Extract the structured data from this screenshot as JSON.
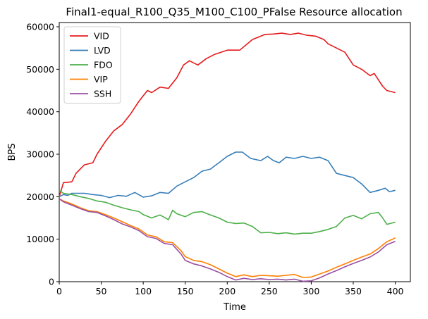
{
  "chart_data": {
    "type": "line",
    "title": "Final1-equal_R100_Q35_M100_C100_PFalse Resource allocation",
    "xlabel": "Time",
    "ylabel": "BPS",
    "xlim": [
      0,
      418
    ],
    "ylim": [
      0,
      61000
    ],
    "xticks": [
      0,
      50,
      100,
      150,
      200,
      250,
      300,
      350,
      400
    ],
    "yticks": [
      0,
      10000,
      20000,
      30000,
      40000,
      50000,
      60000
    ],
    "grid": false,
    "legend_position": "top-left",
    "series": [
      {
        "name": "VID",
        "color": "#e41a1c",
        "points": [
          [
            0,
            20000
          ],
          [
            5,
            23300
          ],
          [
            15,
            23500
          ],
          [
            20,
            25500
          ],
          [
            30,
            27500
          ],
          [
            40,
            28000
          ],
          [
            45,
            30000
          ],
          [
            55,
            33000
          ],
          [
            65,
            35500
          ],
          [
            75,
            37000
          ],
          [
            85,
            39500
          ],
          [
            95,
            42500
          ],
          [
            105,
            45000
          ],
          [
            110,
            44500
          ],
          [
            120,
            45800
          ],
          [
            130,
            45500
          ],
          [
            140,
            48000
          ],
          [
            148,
            51000
          ],
          [
            155,
            52000
          ],
          [
            165,
            51000
          ],
          [
            175,
            52500
          ],
          [
            185,
            53500
          ],
          [
            200,
            54500
          ],
          [
            215,
            54500
          ],
          [
            230,
            57000
          ],
          [
            245,
            58200
          ],
          [
            255,
            58300
          ],
          [
            265,
            58500
          ],
          [
            275,
            58200
          ],
          [
            285,
            58500
          ],
          [
            295,
            58000
          ],
          [
            305,
            57800
          ],
          [
            315,
            57000
          ],
          [
            320,
            56000
          ],
          [
            330,
            55000
          ],
          [
            340,
            54000
          ],
          [
            350,
            51000
          ],
          [
            360,
            50000
          ],
          [
            370,
            48500
          ],
          [
            375,
            49000
          ],
          [
            385,
            46000
          ],
          [
            390,
            45000
          ],
          [
            400,
            44500
          ]
        ]
      },
      {
        "name": "LVD",
        "color": "#377eb8",
        "points": [
          [
            0,
            20000
          ],
          [
            5,
            20500
          ],
          [
            10,
            20300
          ],
          [
            15,
            20800
          ],
          [
            30,
            20800
          ],
          [
            40,
            20500
          ],
          [
            50,
            20300
          ],
          [
            60,
            19800
          ],
          [
            70,
            20300
          ],
          [
            80,
            20100
          ],
          [
            90,
            21000
          ],
          [
            100,
            19900
          ],
          [
            110,
            20200
          ],
          [
            120,
            21000
          ],
          [
            130,
            20800
          ],
          [
            140,
            22500
          ],
          [
            150,
            23500
          ],
          [
            160,
            24500
          ],
          [
            170,
            26000
          ],
          [
            180,
            26500
          ],
          [
            190,
            28000
          ],
          [
            200,
            29500
          ],
          [
            210,
            30500
          ],
          [
            218,
            30500
          ],
          [
            228,
            29000
          ],
          [
            240,
            28500
          ],
          [
            248,
            29500
          ],
          [
            255,
            28500
          ],
          [
            262,
            28000
          ],
          [
            270,
            29300
          ],
          [
            280,
            29000
          ],
          [
            290,
            29500
          ],
          [
            300,
            29000
          ],
          [
            310,
            29300
          ],
          [
            320,
            28500
          ],
          [
            330,
            25500
          ],
          [
            340,
            25000
          ],
          [
            350,
            24500
          ],
          [
            360,
            23000
          ],
          [
            370,
            21000
          ],
          [
            380,
            21500
          ],
          [
            388,
            22000
          ],
          [
            393,
            21200
          ],
          [
            400,
            21500
          ]
        ]
      },
      {
        "name": "FDO",
        "color": "#4daf4a",
        "points": [
          [
            0,
            21500
          ],
          [
            5,
            20800
          ],
          [
            15,
            20500
          ],
          [
            25,
            20000
          ],
          [
            35,
            19600
          ],
          [
            45,
            19000
          ],
          [
            55,
            18700
          ],
          [
            65,
            18000
          ],
          [
            75,
            17400
          ],
          [
            85,
            16900
          ],
          [
            95,
            16500
          ],
          [
            100,
            15800
          ],
          [
            110,
            15000
          ],
          [
            120,
            15700
          ],
          [
            130,
            14600
          ],
          [
            135,
            16800
          ],
          [
            140,
            16000
          ],
          [
            150,
            15300
          ],
          [
            160,
            16300
          ],
          [
            170,
            16500
          ],
          [
            180,
            15700
          ],
          [
            190,
            15000
          ],
          [
            200,
            14000
          ],
          [
            210,
            13700
          ],
          [
            220,
            13800
          ],
          [
            230,
            13000
          ],
          [
            240,
            11500
          ],
          [
            250,
            11600
          ],
          [
            260,
            11300
          ],
          [
            270,
            11500
          ],
          [
            280,
            11200
          ],
          [
            290,
            11400
          ],
          [
            300,
            11400
          ],
          [
            310,
            11800
          ],
          [
            320,
            12300
          ],
          [
            330,
            13000
          ],
          [
            340,
            15000
          ],
          [
            350,
            15600
          ],
          [
            360,
            14800
          ],
          [
            370,
            16000
          ],
          [
            380,
            16300
          ],
          [
            385,
            15000
          ],
          [
            390,
            13500
          ],
          [
            400,
            14000
          ]
        ]
      },
      {
        "name": "VIP",
        "color": "#ff7f00",
        "points": [
          [
            0,
            19500
          ],
          [
            5,
            19000
          ],
          [
            15,
            18300
          ],
          [
            25,
            17400
          ],
          [
            35,
            16700
          ],
          [
            45,
            16500
          ],
          [
            55,
            15800
          ],
          [
            65,
            15000
          ],
          [
            75,
            14100
          ],
          [
            85,
            13200
          ],
          [
            95,
            12400
          ],
          [
            105,
            11000
          ],
          [
            115,
            10600
          ],
          [
            125,
            9400
          ],
          [
            135,
            9200
          ],
          [
            145,
            7300
          ],
          [
            150,
            5900
          ],
          [
            160,
            5000
          ],
          [
            170,
            4700
          ],
          [
            180,
            4000
          ],
          [
            190,
            3000
          ],
          [
            200,
            2000
          ],
          [
            210,
            1200
          ],
          [
            220,
            1600
          ],
          [
            230,
            1200
          ],
          [
            240,
            1500
          ],
          [
            250,
            1400
          ],
          [
            260,
            1300
          ],
          [
            270,
            1500
          ],
          [
            280,
            1700
          ],
          [
            290,
            1000
          ],
          [
            300,
            1100
          ],
          [
            310,
            1800
          ],
          [
            320,
            2500
          ],
          [
            330,
            3400
          ],
          [
            340,
            4200
          ],
          [
            350,
            5000
          ],
          [
            360,
            5800
          ],
          [
            370,
            6500
          ],
          [
            380,
            7800
          ],
          [
            390,
            9400
          ],
          [
            400,
            10300
          ]
        ]
      },
      {
        "name": "SSH",
        "color": "#984ea3",
        "points": [
          [
            0,
            19500
          ],
          [
            5,
            18800
          ],
          [
            15,
            18000
          ],
          [
            25,
            17200
          ],
          [
            35,
            16500
          ],
          [
            45,
            16300
          ],
          [
            55,
            15500
          ],
          [
            65,
            14600
          ],
          [
            75,
            13600
          ],
          [
            85,
            12900
          ],
          [
            95,
            12000
          ],
          [
            105,
            10600
          ],
          [
            115,
            10200
          ],
          [
            125,
            9000
          ],
          [
            135,
            8700
          ],
          [
            145,
            6500
          ],
          [
            150,
            5000
          ],
          [
            160,
            4200
          ],
          [
            170,
            3700
          ],
          [
            180,
            3000
          ],
          [
            190,
            2200
          ],
          [
            200,
            1200
          ],
          [
            210,
            400
          ],
          [
            220,
            800
          ],
          [
            230,
            500
          ],
          [
            240,
            700
          ],
          [
            250,
            500
          ],
          [
            260,
            600
          ],
          [
            270,
            400
          ],
          [
            280,
            600
          ],
          [
            290,
            100
          ],
          [
            300,
            200
          ],
          [
            310,
            900
          ],
          [
            320,
            1800
          ],
          [
            330,
            2600
          ],
          [
            340,
            3500
          ],
          [
            350,
            4300
          ],
          [
            360,
            5000
          ],
          [
            370,
            5800
          ],
          [
            380,
            7000
          ],
          [
            390,
            8700
          ],
          [
            400,
            9500
          ]
        ]
      }
    ]
  }
}
